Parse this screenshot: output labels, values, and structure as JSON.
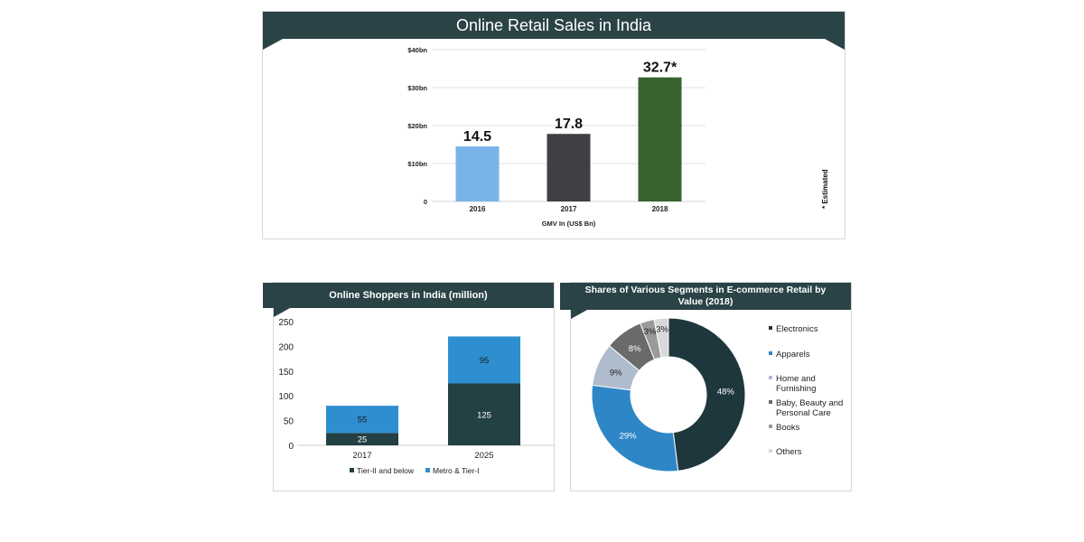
{
  "colors": {
    "header_bg": "#2a4347",
    "bar_2016": "#7ab3e8",
    "bar_2017": "#404044",
    "bar_2018": "#37642e",
    "tier2": "#234044",
    "metro": "#2e8fd0",
    "electronics": "#1e373c",
    "apparels": "#2f86c6",
    "home": "#aebccd",
    "baby": "#6a6a6a",
    "books": "#9a9a9a",
    "others": "#d9d9d9"
  },
  "chart_data": [
    {
      "type": "bar",
      "title": "Online Retail Sales in India",
      "xlabel": "GMV In (US$ Bn)",
      "ylabel": "",
      "categories": [
        "2016",
        "2017",
        "2018"
      ],
      "values": [
        14.5,
        17.8,
        32.7
      ],
      "data_labels": [
        "14.5",
        "17.8",
        "32.7*"
      ],
      "ylim": [
        0,
        40
      ],
      "y_ticks": [
        0,
        10,
        20,
        30,
        40
      ],
      "y_tick_labels": [
        "0",
        "$10bn",
        "$20bn",
        "$30bn",
        "$40bn"
      ],
      "grid": true,
      "annotation": "* Estimated"
    },
    {
      "type": "bar",
      "stacked": true,
      "title": "Online Shoppers in India (million)",
      "categories": [
        "2017",
        "2025"
      ],
      "series": [
        {
          "name": "Tier-II and below",
          "values": [
            25,
            125
          ]
        },
        {
          "name": "Metro & Tier-I",
          "values": [
            55,
            95
          ]
        }
      ],
      "ylim": [
        0,
        250
      ],
      "y_ticks": [
        0,
        50,
        100,
        150,
        200,
        250
      ],
      "legend": "bottom"
    },
    {
      "type": "pie",
      "donut": true,
      "title": "Shares of Various Segments in E-commerce Retail by Value (2018)",
      "categories": [
        "Electronics",
        "Apparels",
        "Home and Furnishing",
        "Baby, Beauty and Personal Care",
        "Books",
        "Others"
      ],
      "values": [
        48,
        29,
        9,
        8,
        3,
        3
      ],
      "data_labels": [
        "48%",
        "29%",
        "9%",
        "8%",
        "3%",
        "3%"
      ],
      "legend": "right"
    }
  ]
}
